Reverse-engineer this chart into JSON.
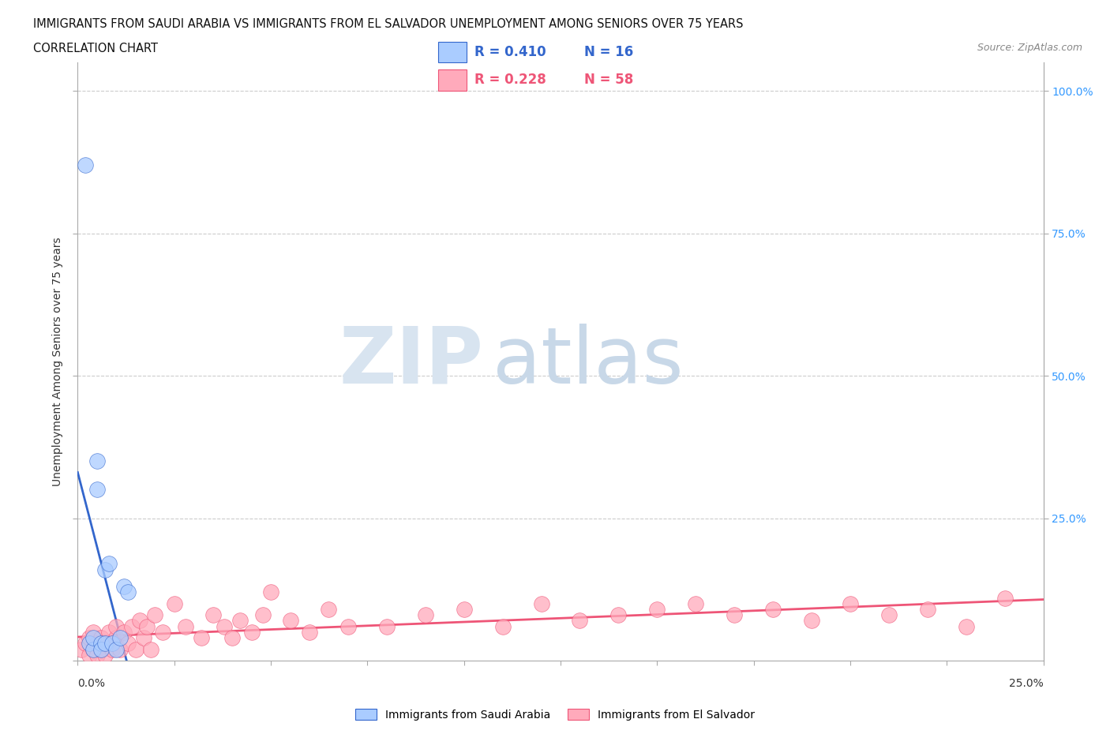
{
  "title_line1": "IMMIGRANTS FROM SAUDI ARABIA VS IMMIGRANTS FROM EL SALVADOR UNEMPLOYMENT AMONG SENIORS OVER 75 YEARS",
  "title_line2": "CORRELATION CHART",
  "source": "Source: ZipAtlas.com",
  "ylabel": "Unemployment Among Seniors over 75 years",
  "xlim": [
    0.0,
    0.25
  ],
  "ylim": [
    0.0,
    1.05
  ],
  "ytick_positions": [
    0.0,
    0.25,
    0.5,
    0.75,
    1.0
  ],
  "ytick_labels_right": [
    "",
    "25.0%",
    "50.0%",
    "75.0%",
    "100.0%"
  ],
  "r_saudi": 0.41,
  "n_saudi": 16,
  "r_salvador": 0.228,
  "n_salvador": 58,
  "color_saudi": "#aaccff",
  "color_salvador": "#ffaabb",
  "color_saudi_line": "#3366cc",
  "color_salvador_line": "#ee5577",
  "watermark_zip": "ZIP",
  "watermark_atlas": "atlas",
  "saudi_x": [
    0.002,
    0.003,
    0.004,
    0.004,
    0.005,
    0.005,
    0.006,
    0.006,
    0.007,
    0.007,
    0.008,
    0.009,
    0.01,
    0.011,
    0.012,
    0.013
  ],
  "saudi_y": [
    0.87,
    0.03,
    0.02,
    0.04,
    0.3,
    0.35,
    0.03,
    0.02,
    0.16,
    0.03,
    0.17,
    0.03,
    0.02,
    0.04,
    0.13,
    0.12
  ],
  "salvador_x": [
    0.001,
    0.002,
    0.003,
    0.003,
    0.004,
    0.004,
    0.005,
    0.005,
    0.006,
    0.006,
    0.007,
    0.007,
    0.008,
    0.009,
    0.01,
    0.01,
    0.011,
    0.012,
    0.013,
    0.014,
    0.015,
    0.016,
    0.017,
    0.018,
    0.019,
    0.02,
    0.022,
    0.025,
    0.028,
    0.032,
    0.035,
    0.038,
    0.04,
    0.042,
    0.045,
    0.048,
    0.05,
    0.055,
    0.06,
    0.065,
    0.07,
    0.08,
    0.09,
    0.1,
    0.11,
    0.12,
    0.13,
    0.14,
    0.15,
    0.16,
    0.17,
    0.18,
    0.19,
    0.2,
    0.21,
    0.22,
    0.23,
    0.24
  ],
  "salvador_y": [
    0.02,
    0.03,
    0.01,
    0.04,
    0.02,
    0.05,
    0.01,
    0.03,
    0.02,
    0.04,
    0.01,
    0.03,
    0.05,
    0.02,
    0.04,
    0.06,
    0.02,
    0.05,
    0.03,
    0.06,
    0.02,
    0.07,
    0.04,
    0.06,
    0.02,
    0.08,
    0.05,
    0.1,
    0.06,
    0.04,
    0.08,
    0.06,
    0.04,
    0.07,
    0.05,
    0.08,
    0.12,
    0.07,
    0.05,
    0.09,
    0.06,
    0.06,
    0.08,
    0.09,
    0.06,
    0.1,
    0.07,
    0.08,
    0.09,
    0.1,
    0.08,
    0.09,
    0.07,
    0.1,
    0.08,
    0.09,
    0.06,
    0.11
  ]
}
